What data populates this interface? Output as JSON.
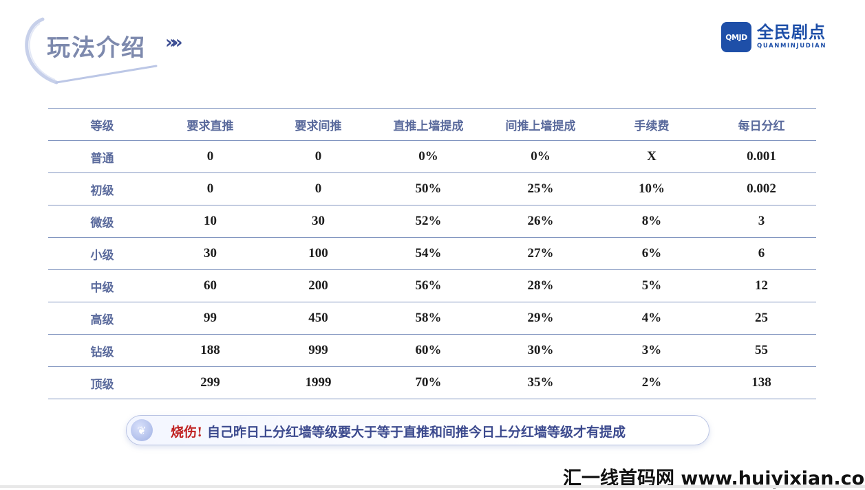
{
  "header": {
    "title": "玩法介绍",
    "arrows": "»»"
  },
  "logo": {
    "mark": "QMJD",
    "name": "全民剧点",
    "subtitle": "QUANMINJUDIAN",
    "color": "#1e4fa8"
  },
  "table": {
    "columns": [
      "等级",
      "要求直推",
      "要求间推",
      "直推上墙提成",
      "间推上墙提成",
      "手续费",
      "每日分红"
    ],
    "rows": [
      [
        "普通",
        "0",
        "0",
        "0%",
        "0%",
        "X",
        "0.001"
      ],
      [
        "初级",
        "0",
        "0",
        "50%",
        "25%",
        "10%",
        "0.002"
      ],
      [
        "微级",
        "10",
        "30",
        "52%",
        "26%",
        "8%",
        "3"
      ],
      [
        "小级",
        "30",
        "100",
        "54%",
        "27%",
        "6%",
        "6"
      ],
      [
        "中级",
        "60",
        "200",
        "56%",
        "28%",
        "5%",
        "12"
      ],
      [
        "高级",
        "99",
        "450",
        "58%",
        "29%",
        "4%",
        "25"
      ],
      [
        "钻级",
        "188",
        "999",
        "60%",
        "30%",
        "3%",
        "55"
      ],
      [
        "顶级",
        "299",
        "1999",
        "70%",
        "35%",
        "2%",
        "138"
      ]
    ]
  },
  "notice": {
    "icon": "sprout-icon",
    "label": "烧伤!",
    "text": "自己昨日上分红墙等级要大于等于直推和间推今日上分红墙等级才有提成"
  },
  "watermark": "汇一线首码网 www.huiyixian.com"
}
